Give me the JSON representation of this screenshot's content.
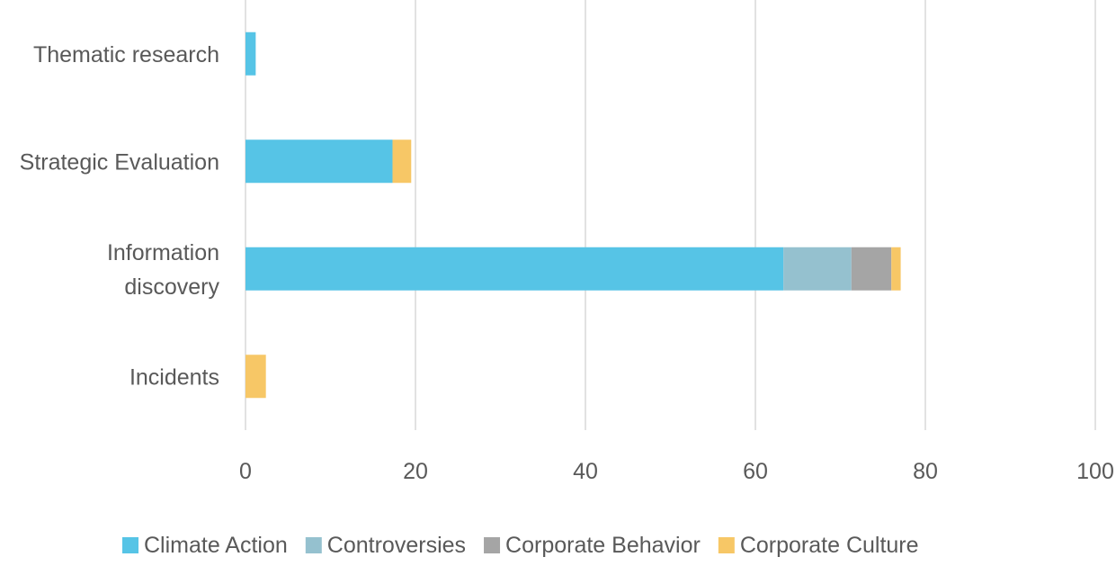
{
  "chart_data": {
    "type": "bar",
    "orientation": "horizontal",
    "stacked": true,
    "categories": [
      "Thematic research",
      "Strategic Evaluation",
      "Information discovery",
      "Incidents"
    ],
    "series": [
      {
        "name": "Climate Action",
        "color": "#56C4E6",
        "values": [
          1.2,
          17.3,
          63.3,
          0
        ]
      },
      {
        "name": "Controversies",
        "color": "#95C1CF",
        "values": [
          0,
          0,
          8.0,
          0
        ]
      },
      {
        "name": "Corporate Behavior",
        "color": "#A5A5A5",
        "values": [
          0,
          0,
          4.7,
          0
        ]
      },
      {
        "name": "Corporate Culture",
        "color": "#F7C766",
        "values": [
          0,
          2.2,
          1.1,
          2.4
        ]
      }
    ],
    "xlim": [
      0,
      100
    ],
    "xticks": [
      "0",
      "20",
      "40",
      "60",
      "80",
      "100"
    ],
    "grid": true,
    "legend": "bottom",
    "title": "",
    "xlabel": "",
    "ylabel": ""
  }
}
